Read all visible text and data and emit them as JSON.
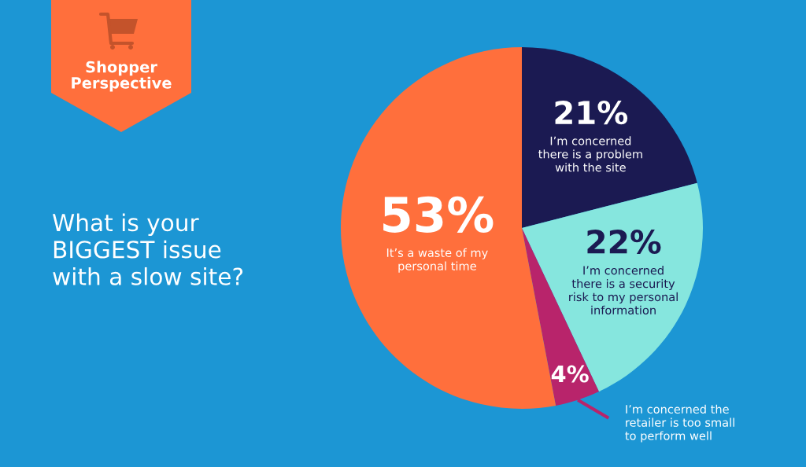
{
  "chart_data": {
    "type": "pie",
    "title": "What is your\nBIGGEST issue\nwith a slow site?",
    "subtitle": "Shopper\nPerspective",
    "categories": [
      "I’m concerned\nthere is a problem\nwith the site",
      "I’m concerned\nthere is a security\nrisk to my personal\ninformation",
      "I’m concerned the\nretailer is too small\nto perform well",
      "It’s a waste of my\npersonal time"
    ],
    "values": [
      21,
      22,
      4,
      53
    ],
    "colors": [
      "#1b1a52",
      "#86e6de",
      "#b8246b",
      "#ff6f3c"
    ],
    "value_labels": [
      "21%",
      "22%",
      "4%",
      "53%"
    ]
  }
}
